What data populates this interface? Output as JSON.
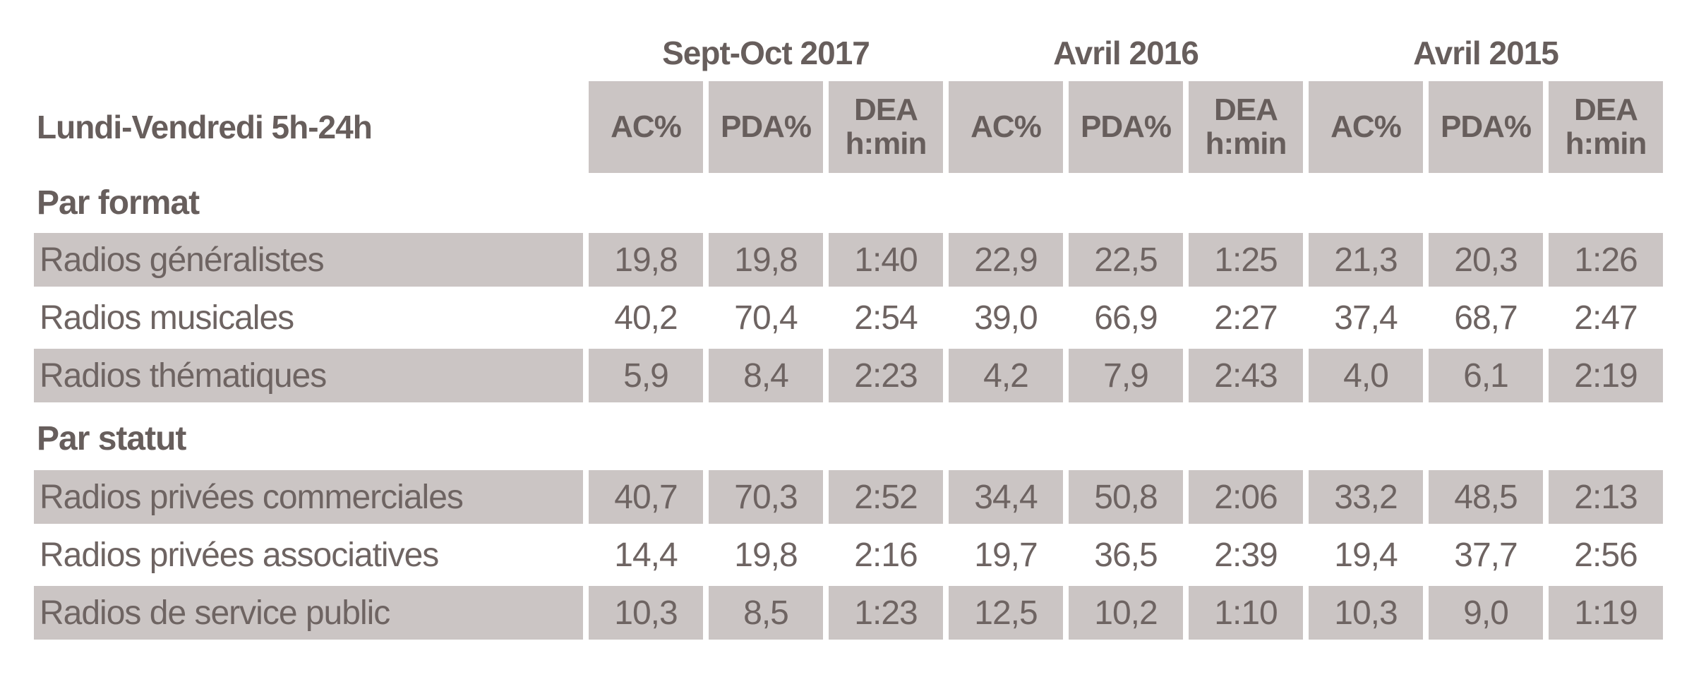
{
  "colors": {
    "row_shade": "#cbc5c4",
    "text": "#6e6462",
    "bold_text": "#675e5c",
    "background": "#ffffff"
  },
  "chart_data": {
    "type": "table",
    "title": "Lundi-Vendredi 5h-24h",
    "column_groups": [
      "Sept-Oct 2017",
      "Avril 2016",
      "Avril 2015"
    ],
    "metric_columns": {
      "ac": "AC%",
      "pda": "PDA%",
      "dea_line1": "DEA",
      "dea_line2": "h:min"
    },
    "columns_per_group": [
      "AC%",
      "PDA%",
      "DEA h:min"
    ],
    "layout_hints": {
      "shaded_rows": "alternating, starting with first data row of each section",
      "grid": "cells separated by white gutters",
      "legend": "none"
    },
    "sections": [
      {
        "title": "Par format",
        "rows": [
          {
            "label": "Radios généralistes",
            "shaded": true,
            "values": [
              "19,8",
              "19,8",
              "1:40",
              "22,9",
              "22,5",
              "1:25",
              "21,3",
              "20,3",
              "1:26"
            ]
          },
          {
            "label": "Radios musicales",
            "shaded": false,
            "values": [
              "40,2",
              "70,4",
              "2:54",
              "39,0",
              "66,9",
              "2:27",
              "37,4",
              "68,7",
              "2:47"
            ]
          },
          {
            "label": "Radios thématiques",
            "shaded": true,
            "values": [
              "5,9",
              "8,4",
              "2:23",
              "4,2",
              "7,9",
              "2:43",
              "4,0",
              "6,1",
              "2:19"
            ]
          }
        ]
      },
      {
        "title": "Par statut",
        "rows": [
          {
            "label": "Radios privées commerciales",
            "shaded": true,
            "values": [
              "40,7",
              "70,3",
              "2:52",
              "34,4",
              "50,8",
              "2:06",
              "33,2",
              "48,5",
              "2:13"
            ]
          },
          {
            "label": "Radios privées associatives",
            "shaded": false,
            "values": [
              "14,4",
              "19,8",
              "2:16",
              "19,7",
              "36,5",
              "2:39",
              "19,4",
              "37,7",
              "2:56"
            ]
          },
          {
            "label": "Radios de service public",
            "shaded": true,
            "values": [
              "10,3",
              "8,5",
              "1:23",
              "12,5",
              "10,2",
              "1:10",
              "10,3",
              "9,0",
              "1:19"
            ]
          }
        ]
      }
    ]
  }
}
